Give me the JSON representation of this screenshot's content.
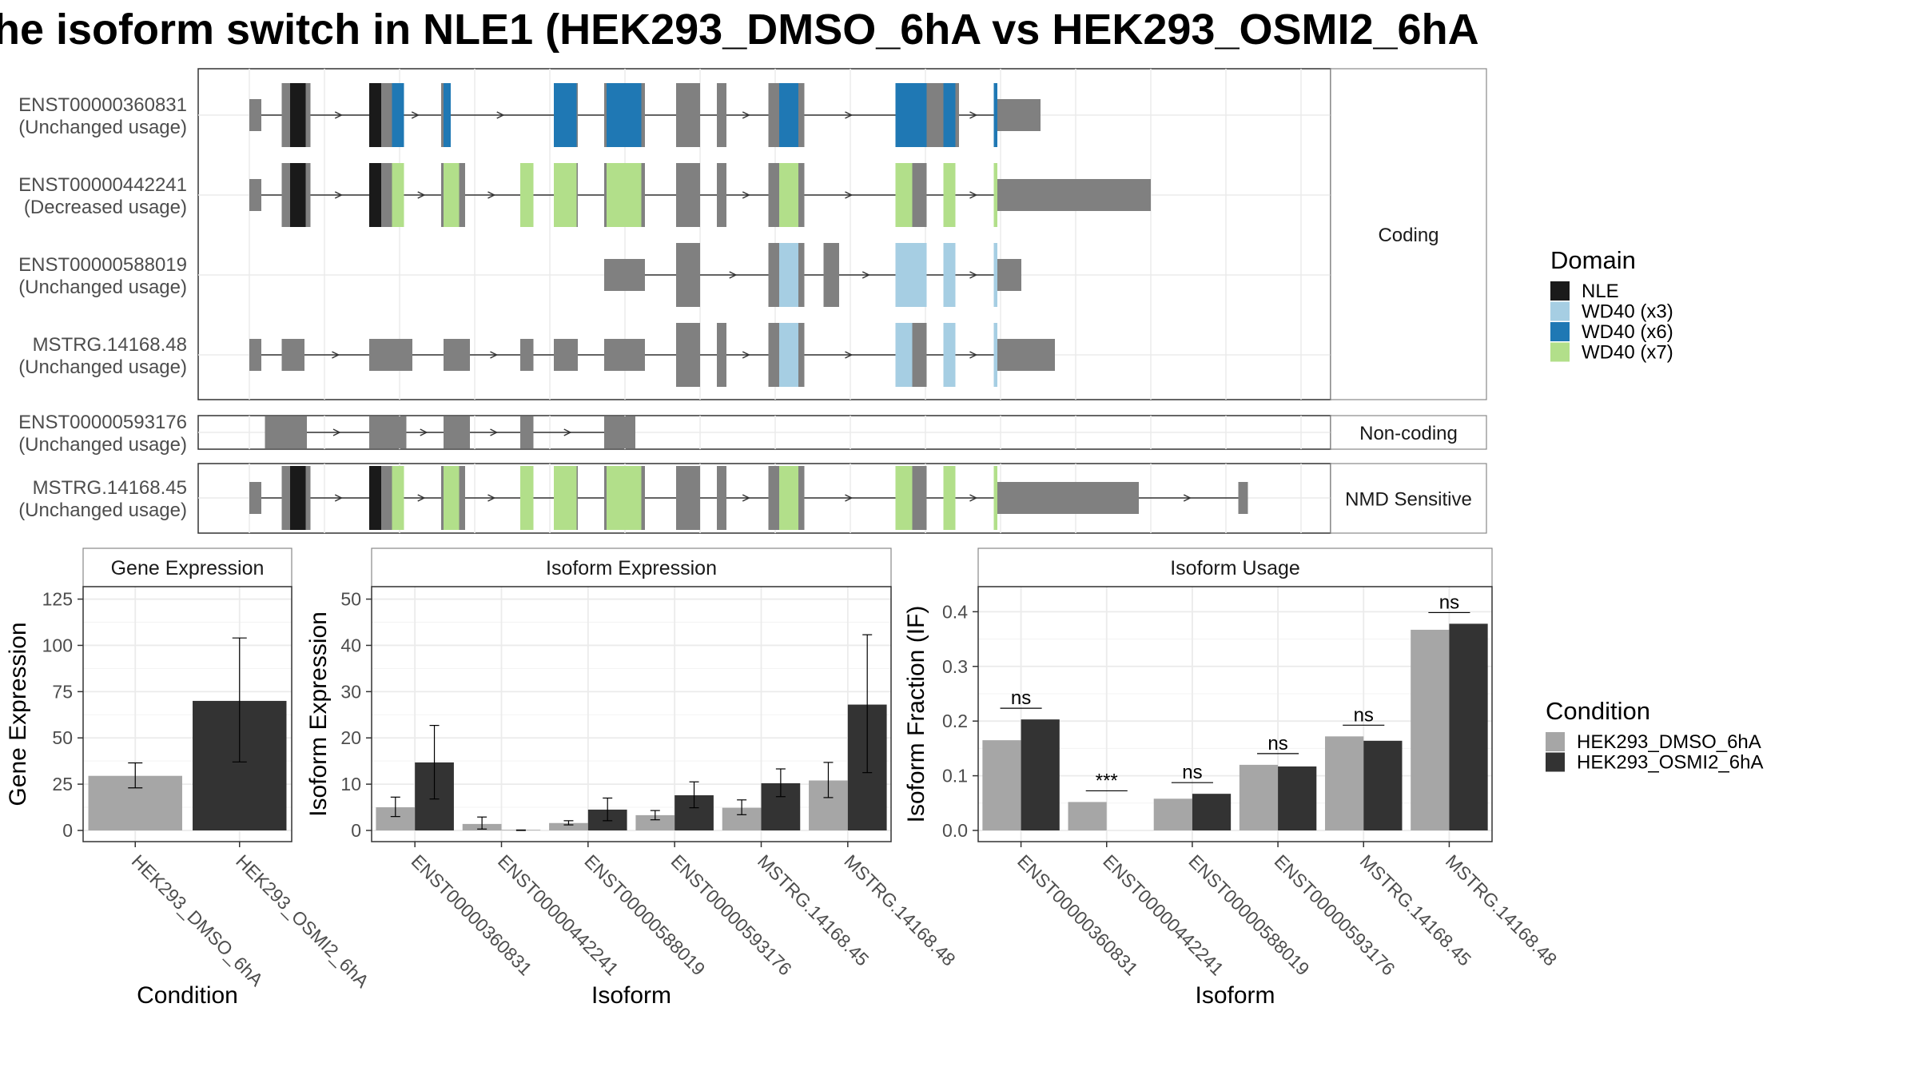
{
  "title": "he isoform switch in NLE1 (HEK293_DMSO_6hA vs HEK293_OSMI2_6hA",
  "colors": {
    "NLE": "#1a1a1a",
    "WD40 (x3)": "#a6cee3",
    "WD40 (x6)": "#1f78b4",
    "WD40 (x7)": "#b2df8a",
    "exon": "#808080",
    "cond1": "#a6a6a6",
    "cond2": "#333333"
  },
  "chart_data": [
    {
      "type": "gene-structure",
      "genome_span": [
        0,
        900
      ],
      "panel_labels": {
        "coding": "Coding",
        "noncoding": "Non-coding",
        "nmd": "NMD Sensitive"
      },
      "transcripts": [
        {
          "id": "ENST00000360831",
          "usage": "(Unchanged usage)",
          "panel": "coding",
          "span": [
            0,
            624
          ],
          "exons": [
            [
              0,
              10,
              "u"
            ],
            [
              27,
              51,
              "c"
            ],
            [
              100,
              119,
              "c"
            ],
            [
              160,
              167,
              "c"
            ],
            [
              254,
              274,
              "c"
            ],
            [
              296,
              330,
              "c"
            ],
            [
              356,
              376,
              "c"
            ],
            [
              390,
              398,
              "c"
            ],
            [
              433,
              463,
              "c"
            ],
            [
              539,
              592,
              "c"
            ],
            [
              579,
              589,
              "c"
            ],
            [
              621,
              660,
              "u"
            ]
          ],
          "domains": [
            [
              34,
              47,
              "NLE"
            ],
            [
              100,
              110,
              "NLE"
            ],
            [
              119,
              129,
              "WD40 (x6)"
            ],
            [
              162,
              168,
              "WD40 (x6)"
            ],
            [
              254,
              273,
              "WD40 (x6)"
            ],
            [
              298,
              327,
              "WD40 (x6)"
            ],
            [
              442,
              458,
              "WD40 (x6)"
            ],
            [
              539,
              565,
              "WD40 (x6)"
            ],
            [
              579,
              589,
              "WD40 (x6)"
            ],
            [
              621,
              624,
              "WD40 (x6)"
            ]
          ]
        },
        {
          "id": "ENST00000442241",
          "usage": "(Decreased usage)",
          "panel": "coding",
          "span": [
            0,
            624
          ],
          "exons": [
            [
              0,
              10,
              "u"
            ],
            [
              27,
              51,
              "c"
            ],
            [
              100,
              129,
              "c"
            ],
            [
              160,
              180,
              "c"
            ],
            [
              226,
              237,
              "c"
            ],
            [
              254,
              274,
              "c"
            ],
            [
              296,
              330,
              "c"
            ],
            [
              356,
              376,
              "c"
            ],
            [
              390,
              398,
              "c"
            ],
            [
              433,
              463,
              "c"
            ],
            [
              539,
              565,
              "c"
            ],
            [
              579,
              589,
              "c"
            ],
            [
              621,
              752,
              "u"
            ]
          ],
          "domains": [
            [
              34,
              47,
              "NLE"
            ],
            [
              100,
              110,
              "NLE"
            ],
            [
              119,
              129,
              "WD40 (x7)"
            ],
            [
              162,
              175,
              "WD40 (x7)"
            ],
            [
              226,
              237,
              "WD40 (x7)"
            ],
            [
              254,
              273,
              "WD40 (x7)"
            ],
            [
              298,
              327,
              "WD40 (x7)"
            ],
            [
              442,
              458,
              "WD40 (x7)"
            ],
            [
              539,
              553,
              "WD40 (x7)"
            ],
            [
              579,
              589,
              "WD40 (x7)"
            ],
            [
              621,
              624,
              "WD40 (x7)"
            ]
          ]
        },
        {
          "id": "ENST00000588019",
          "usage": "(Unchanged usage)",
          "panel": "coding",
          "span": [
            296,
            624
          ],
          "exons": [
            [
              296,
              330,
              "u"
            ],
            [
              356,
              376,
              "c"
            ],
            [
              433,
              463,
              "c"
            ],
            [
              479,
              492,
              "c"
            ],
            [
              539,
              565,
              "c"
            ],
            [
              579,
              589,
              "c"
            ],
            [
              621,
              644,
              "u"
            ]
          ],
          "domains": [
            [
              442,
              458,
              "WD40 (x3)"
            ],
            [
              539,
              565,
              "WD40 (x3)"
            ],
            [
              579,
              589,
              "WD40 (x3)"
            ],
            [
              621,
              624,
              "WD40 (x3)"
            ]
          ]
        },
        {
          "id": "MSTRG.14168.48",
          "usage": "(Unchanged usage)",
          "panel": "coding",
          "span": [
            0,
            624
          ],
          "exons": [
            [
              0,
              10,
              "u"
            ],
            [
              27,
              46,
              "u"
            ],
            [
              100,
              136,
              "u"
            ],
            [
              162,
              184,
              "u"
            ],
            [
              226,
              237,
              "u"
            ],
            [
              254,
              274,
              "u"
            ],
            [
              296,
              330,
              "u"
            ],
            [
              356,
              376,
              "c"
            ],
            [
              390,
              398,
              "c"
            ],
            [
              433,
              463,
              "c"
            ],
            [
              539,
              565,
              "c"
            ],
            [
              579,
              589,
              "c"
            ],
            [
              621,
              672,
              "u"
            ]
          ],
          "domains": [
            [
              442,
              458,
              "WD40 (x3)"
            ],
            [
              539,
              553,
              "WD40 (x3)"
            ],
            [
              579,
              589,
              "WD40 (x3)"
            ],
            [
              621,
              624,
              "WD40 (x3)"
            ]
          ]
        },
        {
          "id": "ENST00000593176",
          "usage": "(Unchanged usage)",
          "panel": "noncoding",
          "span": [
            13,
            322
          ],
          "exons": [
            [
              13,
              48,
              "u"
            ],
            [
              100,
              131,
              "u"
            ],
            [
              162,
              184,
              "u"
            ],
            [
              226,
              237,
              "u"
            ],
            [
              296,
              322,
              "u"
            ]
          ],
          "domains": []
        },
        {
          "id": "MSTRG.14168.45",
          "usage": "(Unchanged usage)",
          "panel": "nmd",
          "span": [
            0,
            833
          ],
          "exons": [
            [
              0,
              10,
              "u"
            ],
            [
              27,
              51,
              "c"
            ],
            [
              100,
              129,
              "c"
            ],
            [
              160,
              180,
              "c"
            ],
            [
              226,
              237,
              "c"
            ],
            [
              254,
              274,
              "c"
            ],
            [
              296,
              330,
              "c"
            ],
            [
              356,
              376,
              "c"
            ],
            [
              390,
              398,
              "c"
            ],
            [
              433,
              463,
              "c"
            ],
            [
              539,
              565,
              "c"
            ],
            [
              579,
              589,
              "c"
            ],
            [
              621,
              742,
              "u"
            ],
            [
              825,
              833,
              "u"
            ]
          ],
          "domains": [
            [
              34,
              47,
              "NLE"
            ],
            [
              100,
              110,
              "NLE"
            ],
            [
              119,
              129,
              "WD40 (x7)"
            ],
            [
              162,
              175,
              "WD40 (x7)"
            ],
            [
              226,
              237,
              "WD40 (x7)"
            ],
            [
              254,
              273,
              "WD40 (x7)"
            ],
            [
              298,
              327,
              "WD40 (x7)"
            ],
            [
              442,
              458,
              "WD40 (x7)"
            ],
            [
              539,
              553,
              "WD40 (x7)"
            ],
            [
              579,
              589,
              "WD40 (x7)"
            ],
            [
              621,
              624,
              "WD40 (x7)"
            ]
          ]
        }
      ]
    },
    {
      "type": "bar",
      "title": "Gene Expression",
      "xlabel": "Condition",
      "ylabel": "Gene Expression",
      "ylim": [
        0,
        130
      ],
      "yticks": [
        0,
        25,
        50,
        75,
        100,
        125
      ],
      "categories": [
        "HEK293_DMSO_6hA",
        "HEK293_OSMI2_6hA"
      ],
      "values": [
        29.5,
        70
      ],
      "errors": [
        [
          23,
          36.5
        ],
        [
          37,
          104
        ]
      ]
    },
    {
      "type": "bar",
      "title": "Isoform Expression",
      "xlabel": "Isoform",
      "ylabel": "Isoform Expression",
      "ylim": [
        0,
        52
      ],
      "yticks": [
        0,
        10,
        20,
        30,
        40,
        50
      ],
      "categories": [
        "ENST00000360831",
        "ENST00000442241",
        "ENST00000588019",
        "ENST00000593176",
        "MSTRG.14168.45",
        "MSTRG.14168.48"
      ],
      "series": [
        {
          "name": "HEK293_DMSO_6hA",
          "values": [
            5,
            1.4,
            1.6,
            3.3,
            4.9,
            10.8
          ],
          "errors": [
            [
              3,
              7.2
            ],
            [
              0.3,
              2.9
            ],
            [
              1.2,
              2.1
            ],
            [
              2.3,
              4.3
            ],
            [
              3.4,
              6.6
            ],
            [
              7.1,
              14.7
            ]
          ]
        },
        {
          "name": "HEK293_OSMI2_6hA",
          "values": [
            14.7,
            0.05,
            4.5,
            7.6,
            10.2,
            27.2
          ],
          "errors": [
            [
              6.8,
              22.7
            ],
            [
              0,
              0.1
            ],
            [
              2.1,
              7
            ],
            [
              4.9,
              10.5
            ],
            [
              7.3,
              13.3
            ],
            [
              12.5,
              42.3
            ]
          ]
        }
      ]
    },
    {
      "type": "bar",
      "title": "Isoform Usage",
      "xlabel": "Isoform",
      "ylabel": "Isoform Fraction (IF)",
      "ylim": [
        0,
        0.44
      ],
      "yticks": [
        0.0,
        0.1,
        0.2,
        0.3,
        0.4
      ],
      "ytick_labels": [
        "0.0",
        "0.1",
        "0.2",
        "0.3",
        "0.4"
      ],
      "categories": [
        "ENST00000360831",
        "ENST00000442241",
        "ENST00000588019",
        "ENST00000593176",
        "MSTRG.14168.45",
        "MSTRG.14168.48"
      ],
      "series": [
        {
          "name": "HEK293_DMSO_6hA",
          "values": [
            0.165,
            0.052,
            0.058,
            0.12,
            0.172,
            0.367
          ]
        },
        {
          "name": "HEK293_OSMI2_6hA",
          "values": [
            0.203,
            0.0,
            0.067,
            0.117,
            0.164,
            0.378
          ]
        }
      ],
      "significance": [
        "ns",
        "***",
        "ns",
        "ns",
        "ns",
        "ns"
      ]
    }
  ],
  "legend_domain": {
    "title": "Domain",
    "items": [
      "NLE",
      "WD40 (x3)",
      "WD40 (x6)",
      "WD40 (x7)"
    ]
  },
  "legend_condition": {
    "title": "Condition",
    "items": [
      "HEK293_DMSO_6hA",
      "HEK293_OSMI2_6hA"
    ]
  }
}
